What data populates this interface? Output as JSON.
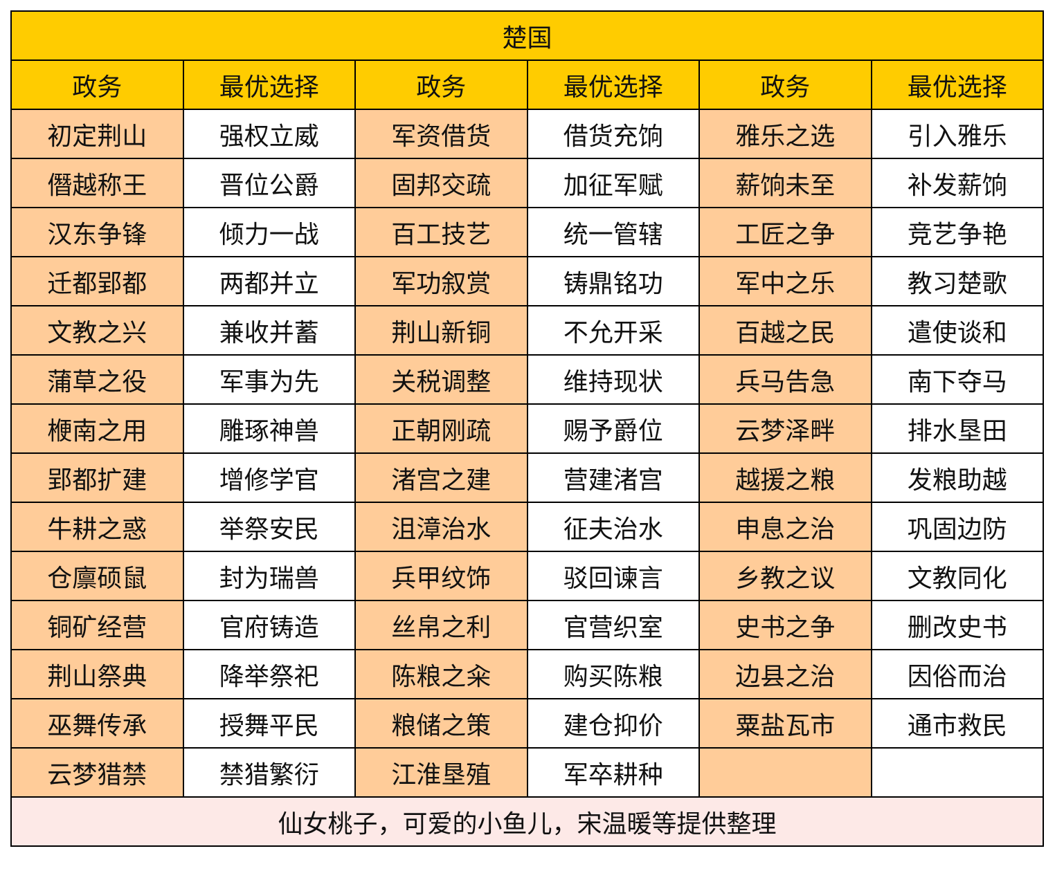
{
  "title": "楚国",
  "headers": [
    "政务",
    "最优选择",
    "政务",
    "最优选择",
    "政务",
    "最优选择"
  ],
  "rows": [
    [
      "初定荆山",
      "强权立威",
      "军资借货",
      "借货充饷",
      "雅乐之选",
      "引入雅乐"
    ],
    [
      "僭越称王",
      "晋位公爵",
      "固邦交疏",
      "加征军赋",
      "薪饷未至",
      "补发薪饷"
    ],
    [
      "汉东争锋",
      "倾力一战",
      "百工技艺",
      "统一管辖",
      "工匠之争",
      "竞艺争艳"
    ],
    [
      "迁都郢都",
      "两都并立",
      "军功叙赏",
      "铸鼎铭功",
      "军中之乐",
      "教习楚歌"
    ],
    [
      "文教之兴",
      "兼收并蓄",
      "荆山新铜",
      "不允开采",
      "百越之民",
      "遣使谈和"
    ],
    [
      "蒲草之役",
      "军事为先",
      "关税调整",
      "维持现状",
      "兵马告急",
      "南下夺马"
    ],
    [
      "楩南之用",
      "雕琢神兽",
      "正朝刚疏",
      "赐予爵位",
      "云梦泽畔",
      "排水垦田"
    ],
    [
      "郢都扩建",
      "增修学官",
      "渚宫之建",
      "营建渚宫",
      "越援之粮",
      "发粮助越"
    ],
    [
      "牛耕之惑",
      "举祭安民",
      "沮漳治水",
      "征夫治水",
      "申息之治",
      "巩固边防"
    ],
    [
      "仓廪硕鼠",
      "封为瑞兽",
      "兵甲纹饰",
      "驳回谏言",
      "乡教之议",
      "文教同化"
    ],
    [
      "铜矿经营",
      "官府铸造",
      "丝帛之利",
      "官营织室",
      "史书之争",
      "删改史书"
    ],
    [
      "荆山祭典",
      "降举祭祀",
      "陈粮之籴",
      "购买陈粮",
      "边县之治",
      "因俗而治"
    ],
    [
      "巫舞传承",
      "授舞平民",
      "粮储之策",
      "建仓抑价",
      "粟盐瓦市",
      "通市救民"
    ],
    [
      "云梦猎禁",
      "禁猎繁衍",
      "江淮垦殖",
      "军卒耕种",
      "",
      ""
    ]
  ],
  "footer": "仙女桃子，可爱的小鱼儿，宋温暖等提供整理",
  "colors": {
    "header": "#ffcc00",
    "affair_cell": "#ffcc99",
    "footer": "#fde9e7"
  }
}
